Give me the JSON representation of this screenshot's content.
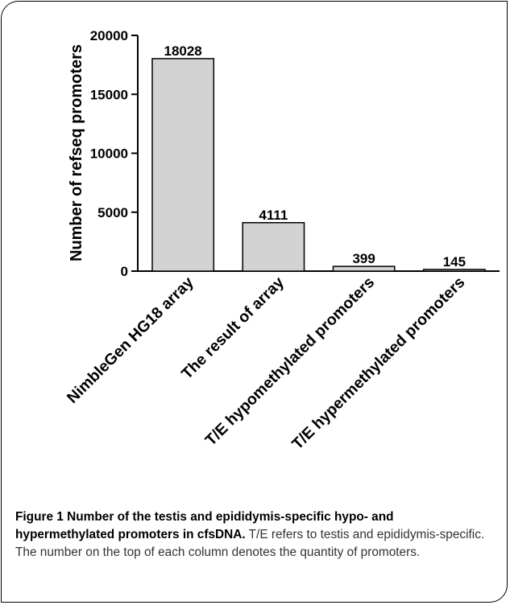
{
  "chart_data": {
    "type": "bar",
    "categories": [
      "NimbleGen HG18 array",
      "The result of array",
      "T/E hypomethylated promoters",
      "T/E hypermethylated promoters"
    ],
    "values": [
      18028,
      4111,
      399,
      145
    ],
    "data_labels": [
      "18028",
      "4111",
      "399",
      "145"
    ],
    "ylabel": "Number of refseq promoters",
    "xlabel": "",
    "ylim": [
      0,
      20000
    ],
    "yticks": [
      0,
      5000,
      10000,
      15000,
      20000
    ],
    "grid": false,
    "legend": "none",
    "bar_color": "#d3d3d3",
    "bar_edge": "#000000"
  },
  "caption": {
    "label": "Figure 1",
    "title": "Number of the testis and epididymis-specific hypo- and hypermethylated promoters in cfsDNA.",
    "text": "T/E refers to testis and epididymis-specific. The number on the top of each column denotes the quantity of promoters."
  }
}
